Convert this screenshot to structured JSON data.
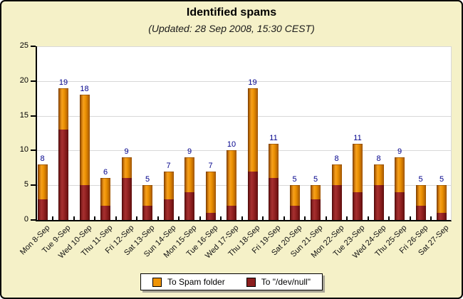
{
  "chart_data": {
    "type": "bar",
    "stacked": true,
    "title": "Identified spams",
    "subtitle": "(Updated: 28 Sep 2008, 15:30 CEST)",
    "categories": [
      "Mon 8-Sep",
      "Tue 9-Sep",
      "Wed 10-Sep",
      "Thu 11-Sep",
      "Fri 12-Sep",
      "Sat 13-Sep",
      "Sun 14-Sep",
      "Mon 15-Sep",
      "Tue 16-Sep",
      "Wed 17-Sep",
      "Thu 18-Sep",
      "Fri 19-Sep",
      "Sat 20-Sep",
      "Sun 21-Sep",
      "Mon 22-Sep",
      "Tue 23-Sep",
      "Wed 24-Sep",
      "Thu 25-Sep",
      "Fri 26-Sep",
      "Sat 27-Sep"
    ],
    "series": [
      {
        "name": "To Spam folder",
        "color": "#EF9405",
        "stack_position": "top",
        "values": [
          5,
          6,
          13,
          4,
          3,
          3,
          4,
          5,
          6,
          8,
          12,
          5,
          3,
          2,
          3,
          7,
          3,
          5,
          3,
          4
        ]
      },
      {
        "name": "To \"/dev/null\"",
        "color": "#8B1E1E",
        "stack_position": "bottom",
        "values": [
          3,
          13,
          5,
          2,
          6,
          2,
          3,
          4,
          1,
          2,
          7,
          6,
          2,
          3,
          5,
          4,
          5,
          4,
          2,
          1
        ]
      }
    ],
    "totals": [
      8,
      19,
      18,
      6,
      9,
      5,
      7,
      9,
      7,
      10,
      19,
      11,
      5,
      5,
      8,
      11,
      8,
      9,
      5,
      5
    ],
    "xlabel": "",
    "ylabel": "",
    "ylim": [
      0,
      25
    ],
    "yticks": [
      0,
      5,
      10,
      15,
      20,
      25
    ],
    "grid": true,
    "legend_position": "bottom",
    "value_labels": "totals shown above each bar in navy"
  },
  "colors": {
    "background": "#F5F1C8",
    "plot_background": "#FFFFFF",
    "gridline": "#D8D8D8",
    "axis": "#000000",
    "value_label": "#00008B",
    "spam_folder": "#EF9405",
    "devnull": "#8B1E1E",
    "legend_shadow": "#A8A596"
  },
  "legend": {
    "items": [
      {
        "id": "spam-folder",
        "label": "To Spam folder",
        "color": "#EF9405"
      },
      {
        "id": "devnull",
        "label": "To \"/dev/null\"",
        "color": "#8B1E1E"
      }
    ]
  }
}
